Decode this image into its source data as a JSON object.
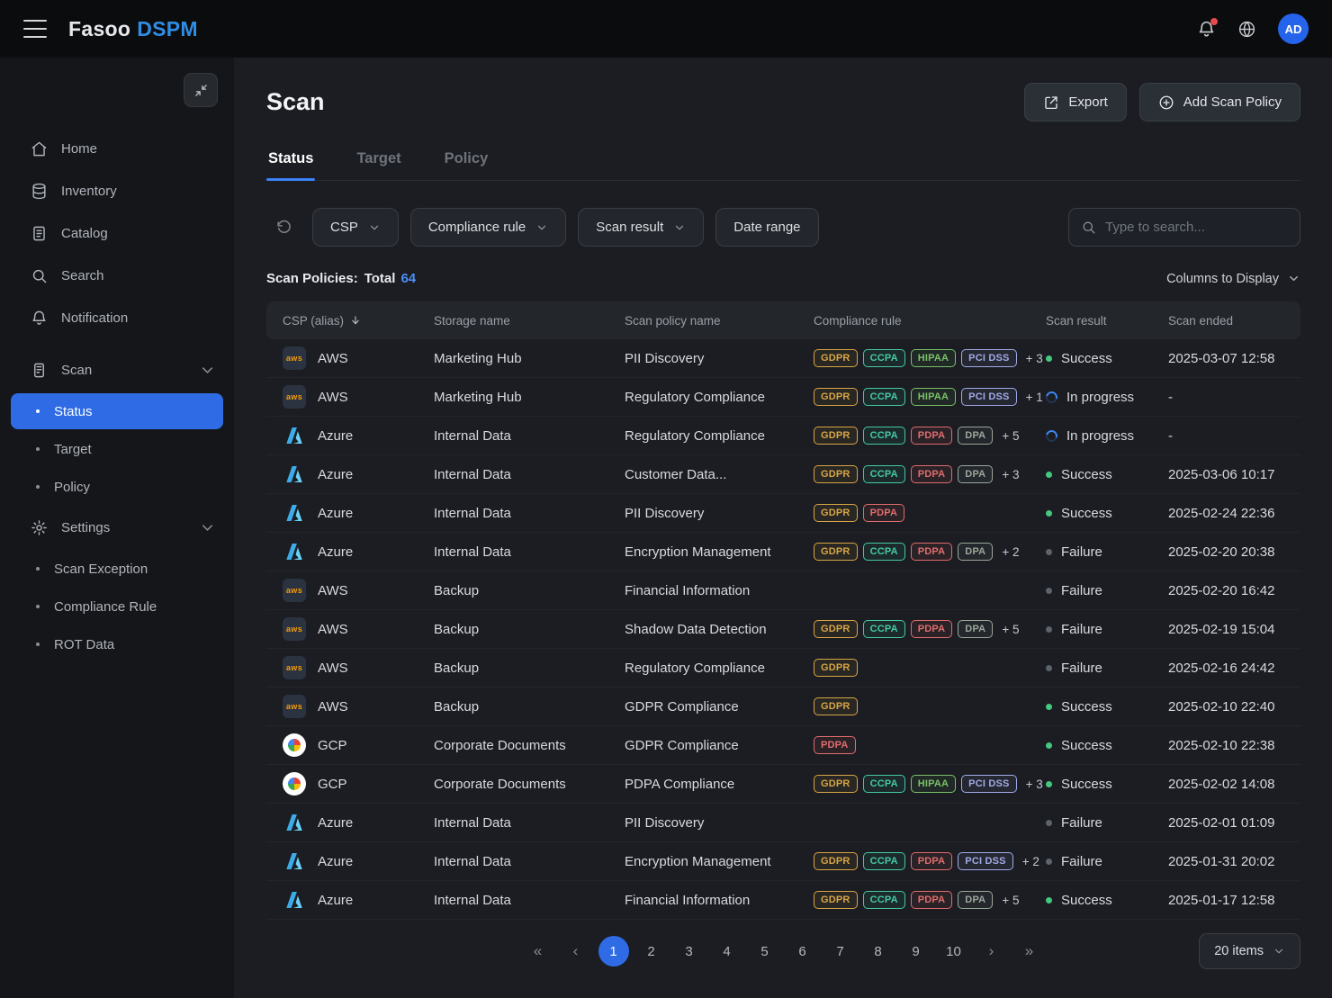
{
  "topbar": {
    "brand_fasoo": "Fasoo",
    "brand_dspm": "DSPM",
    "avatar": "AD"
  },
  "sidebar": {
    "items": [
      {
        "label": "Home"
      },
      {
        "label": "Inventory"
      },
      {
        "label": "Catalog"
      },
      {
        "label": "Search"
      },
      {
        "label": "Notification"
      },
      {
        "label": "Scan",
        "children": [
          "Status",
          "Target",
          "Policy"
        ],
        "active_child": "Status"
      },
      {
        "label": "Settings",
        "children": [
          "Scan Exception",
          "Compliance Rule",
          "ROT Data"
        ]
      }
    ]
  },
  "page": {
    "title": "Scan",
    "export_label": "Export",
    "add_policy_label": "Add Scan Policy",
    "tabs": [
      {
        "label": "Status",
        "active": true
      },
      {
        "label": "Target",
        "active": false
      },
      {
        "label": "Policy",
        "active": false
      }
    ]
  },
  "filters": {
    "csp": "CSP",
    "compliance_rule": "Compliance rule",
    "scan_result": "Scan result",
    "date_range": "Date range",
    "search_placeholder": "Type to search..."
  },
  "summary": {
    "label": "Scan Policies:",
    "total_label": "Total",
    "total_value": "64",
    "columns_label": "Columns to Display"
  },
  "table": {
    "headers": [
      "CSP (alias)",
      "Storage name",
      "Scan policy name",
      "Compliance rule",
      "Scan result",
      "Scan ended"
    ],
    "rows": [
      {
        "csp": "AWS",
        "storage": "Marketing Hub",
        "policy": "PII Discovery",
        "badges": [
          "GDPR",
          "CCPA",
          "HIPAA",
          "PCI DSS"
        ],
        "extra": "+ 3",
        "result": "Success",
        "result_type": "success",
        "ended": "2025-03-07 12:58"
      },
      {
        "csp": "AWS",
        "storage": "Marketing Hub",
        "policy": "Regulatory Compliance",
        "badges": [
          "GDPR",
          "CCPA",
          "HIPAA",
          "PCI DSS"
        ],
        "extra": "+ 1",
        "result": "In progress",
        "result_type": "progress",
        "ended": "-"
      },
      {
        "csp": "Azure",
        "storage": "Internal Data",
        "policy": "Regulatory Compliance",
        "badges": [
          "GDPR",
          "CCPA",
          "PDPA",
          "DPA"
        ],
        "extra": "+ 5",
        "result": "In progress",
        "result_type": "progress",
        "ended": "-"
      },
      {
        "csp": "Azure",
        "storage": "Internal Data",
        "policy": "Customer Data...",
        "badges": [
          "GDPR",
          "CCPA",
          "PDPA",
          "DPA"
        ],
        "extra": "+ 3",
        "result": "Success",
        "result_type": "success",
        "ended": "2025-03-06 10:17"
      },
      {
        "csp": "Azure",
        "storage": "Internal Data",
        "policy": "PII Discovery",
        "badges": [
          "GDPR",
          "PDPA"
        ],
        "extra": "",
        "result": "Success",
        "result_type": "success",
        "ended": "2025-02-24 22:36"
      },
      {
        "csp": "Azure",
        "storage": "Internal Data",
        "policy": "Encryption Management",
        "badges": [
          "GDPR",
          "CCPA",
          "PDPA",
          "DPA"
        ],
        "extra": "+ 2",
        "result": "Failure",
        "result_type": "failure",
        "ended": "2025-02-20 20:38"
      },
      {
        "csp": "AWS",
        "storage": "Backup",
        "policy": "Financial Information",
        "badges": [],
        "extra": "",
        "result": "Failure",
        "result_type": "failure",
        "ended": "2025-02-20 16:42"
      },
      {
        "csp": "AWS",
        "storage": "Backup",
        "policy": "Shadow Data Detection",
        "badges": [
          "GDPR",
          "CCPA",
          "PDPA",
          "DPA"
        ],
        "extra": "+ 5",
        "result": "Failure",
        "result_type": "failure",
        "ended": "2025-02-19 15:04"
      },
      {
        "csp": "AWS",
        "storage": "Backup",
        "policy": "Regulatory Compliance",
        "badges": [
          "GDPR"
        ],
        "extra": "",
        "result": "Failure",
        "result_type": "failure",
        "ended": "2025-02-16 24:42"
      },
      {
        "csp": "AWS",
        "storage": "Backup",
        "policy": "GDPR Compliance",
        "badges": [
          "GDPR"
        ],
        "extra": "",
        "result": "Success",
        "result_type": "success",
        "ended": "2025-02-10 22:40"
      },
      {
        "csp": "GCP",
        "storage": "Corporate Documents",
        "policy": "GDPR Compliance",
        "badges": [
          "PDPA"
        ],
        "extra": "",
        "result": "Success",
        "result_type": "success",
        "ended": "2025-02-10 22:38"
      },
      {
        "csp": "GCP",
        "storage": "Corporate Documents",
        "policy": "PDPA Compliance",
        "badges": [
          "GDPR",
          "CCPA",
          "HIPAA",
          "PCI DSS"
        ],
        "extra": "+ 3",
        "result": "Success",
        "result_type": "success",
        "ended": "2025-02-02 14:08"
      },
      {
        "csp": "Azure",
        "storage": "Internal Data",
        "policy": "PII Discovery",
        "badges": [],
        "extra": "",
        "result": "Failure",
        "result_type": "failure",
        "ended": "2025-02-01 01:09"
      },
      {
        "csp": "Azure",
        "storage": "Internal Data",
        "policy": "Encryption Management",
        "badges": [
          "GDPR",
          "CCPA",
          "PDPA",
          "PCI DSS"
        ],
        "extra": "+ 2",
        "result": "Failure",
        "result_type": "failure",
        "ended": "2025-01-31 20:02"
      },
      {
        "csp": "Azure",
        "storage": "Internal Data",
        "policy": "Financial Information",
        "badges": [
          "GDPR",
          "CCPA",
          "PDPA",
          "DPA"
        ],
        "extra": "+ 5",
        "result": "Success",
        "result_type": "success",
        "ended": "2025-01-17 12:58"
      }
    ]
  },
  "pagination": {
    "first": "«",
    "prev": "‹",
    "pages": [
      "1",
      "2",
      "3",
      "4",
      "5",
      "6",
      "7",
      "8",
      "9",
      "10"
    ],
    "active_page": "1",
    "next": "›",
    "last": "»",
    "items_per_page": "20 items"
  },
  "badge_colors": {
    "GDPR": "#d7a545",
    "CCPA": "#45c9a5",
    "HIPAA": "#79c069",
    "PCI DSS": "#a2abe8",
    "PDPA": "#e06c6c",
    "DPA": "#9aa79c"
  },
  "colors": {
    "accent": "#2e6be5",
    "link_blue": "#4d8ef7",
    "success": "#42c97e",
    "failure": "#5c636c",
    "in_progress": "#3f86f5",
    "notification_dot": "#e5484d",
    "brand_blue": "#2f8de4"
  }
}
